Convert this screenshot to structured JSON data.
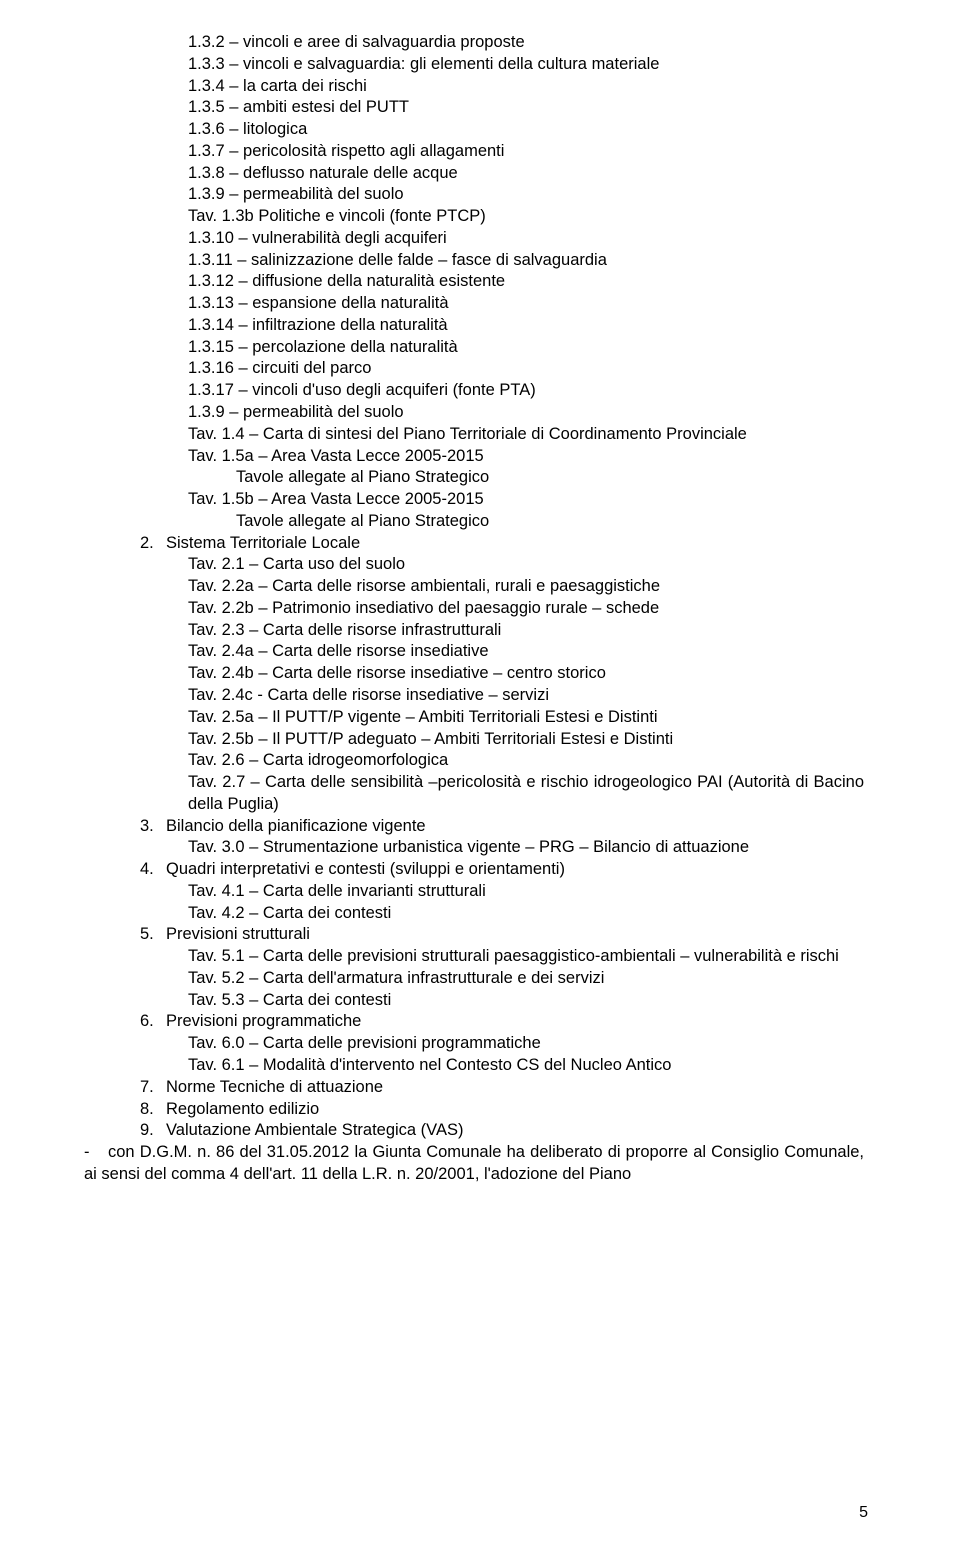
{
  "pageNumber": "5",
  "block0_sub": [
    "1.3.2 – vincoli e aree di salvaguardia proposte",
    "1.3.3 – vincoli e salvaguardia: gli elementi della cultura materiale",
    "1.3.4 – la carta dei rischi",
    "1.3.5 – ambiti estesi del PUTT",
    "1.3.6 – litologica",
    "1.3.7 – pericolosità rispetto agli allagamenti",
    "1.3.8 – deflusso naturale delle acque",
    "1.3.9 – permeabilità del suolo",
    "Tav. 1.3b Politiche e vincoli (fonte PTCP)",
    "1.3.10 – vulnerabilità degli acquiferi",
    "1.3.11 – salinizzazione delle falde – fasce di salvaguardia",
    "1.3.12 – diffusione della naturalità esistente",
    "1.3.13 – espansione della naturalità",
    "1.3.14 – infiltrazione della naturalità",
    "1.3.15 – percolazione della naturalità",
    "1.3.16 – circuiti del parco",
    "1.3.17 – vincoli d'uso degli acquiferi (fonte PTA)",
    "1.3.9 – permeabilità del suolo",
    "Tav. 1.4 – Carta di sintesi del Piano Territoriale di Coordinamento Provinciale",
    "Tav. 1.5a – Area Vasta Lecce 2005-2015"
  ],
  "block0_sub2_a": "Tavole allegate al Piano Strategico",
  "block0_sub_b": "Tav. 1.5b – Area Vasta Lecce 2005-2015",
  "block0_sub2_b": "Tavole allegate al Piano Strategico",
  "sec2_num": "2.",
  "sec2_title": "Sistema Territoriale Locale",
  "sec2_items": [
    "Tav. 2.1 – Carta uso del suolo",
    "Tav. 2.2a – Carta delle risorse ambientali, rurali e paesaggistiche",
    "Tav. 2.2b – Patrimonio insediativo del paesaggio rurale – schede",
    "Tav. 2.3 – Carta delle risorse infrastrutturali",
    "Tav. 2.4a – Carta delle risorse insediative",
    "Tav. 2.4b – Carta delle risorse insediative – centro storico",
    "Tav. 2.4c - Carta delle risorse insediative – servizi",
    "Tav. 2.5a – Il PUTT/P vigente – Ambiti Territoriali Estesi e Distinti",
    "Tav. 2.5b – Il PUTT/P adeguato – Ambiti Territoriali Estesi e Distinti",
    "Tav. 2.6 – Carta idrogeomorfologica",
    "Tav. 2.7 – Carta delle sensibilità –pericolosità e rischio idrogeologico PAI (Autorità di Bacino della Puglia)"
  ],
  "sec3_num": "3.",
  "sec3_title": "Bilancio della pianificazione vigente",
  "sec3_items": [
    "Tav. 3.0 – Strumentazione urbanistica vigente – PRG – Bilancio di attuazione"
  ],
  "sec4_num": "4.",
  "sec4_title": "Quadri interpretativi e contesti (sviluppi e orientamenti)",
  "sec4_items": [
    "Tav. 4.1 – Carta delle invarianti strutturali",
    "Tav. 4.2 – Carta dei contesti"
  ],
  "sec5_num": "5.",
  "sec5_title": "Previsioni strutturali",
  "sec5_items": [
    "Tav. 5.1 – Carta delle previsioni strutturali paesaggistico-ambientali – vulnerabilità e rischi",
    "Tav. 5.2 – Carta dell'armatura infrastrutturale e dei servizi",
    "Tav. 5.3 – Carta dei contesti"
  ],
  "sec6_num": "6.",
  "sec6_title": "Previsioni programmatiche",
  "sec6_items": [
    "Tav. 6.0 – Carta delle previsioni programmatiche",
    "Tav. 6.1 – Modalità d'intervento nel Contesto CS del Nucleo Antico"
  ],
  "sec7_num": "7.",
  "sec7_title": "Norme Tecniche di attuazione",
  "sec8_num": "8.",
  "sec8_title": "Regolamento edilizio",
  "sec9_num": "9.",
  "sec9_title": "Valutazione Ambientale Strategica (VAS)",
  "finalPara": "con D.G.M. n. 86 del 31.05.2012 la Giunta Comunale ha deliberato di proporre al Consiglio Comunale, ai sensi del comma 4 dell'art. 11 della L.R. n. 20/2001, l'adozione del Piano"
}
